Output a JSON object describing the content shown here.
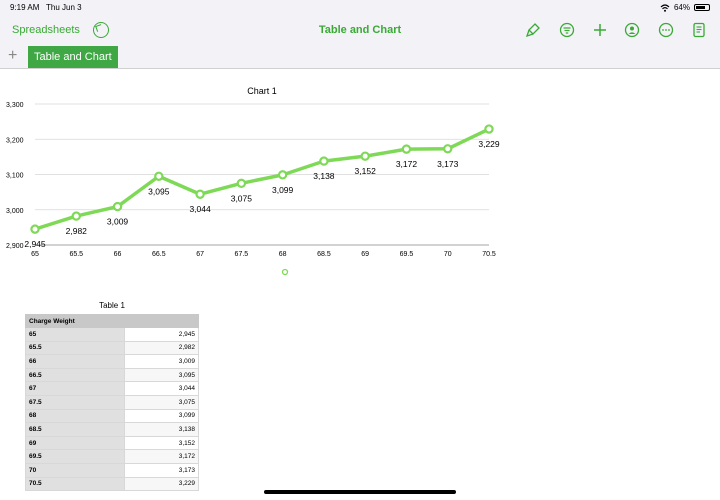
{
  "status_bar": {
    "time": "9:19 AM",
    "date": "Thu Jun 3",
    "battery": "64%",
    "battery_level": 0.64
  },
  "toolbar": {
    "back_label": "Spreadsheets",
    "title": "Table and Chart",
    "icons": [
      "undo-icon",
      "format-brush-icon",
      "filter-icon",
      "add-icon",
      "collaborate-icon",
      "more-icon",
      "document-icon"
    ]
  },
  "sheet_tab": "Table and Chart",
  "chart_data": {
    "type": "line",
    "title": "Chart 1",
    "x": [
      65,
      65.5,
      66,
      66.5,
      67,
      67.5,
      68,
      68.5,
      69,
      69.5,
      70,
      70.5
    ],
    "series": [
      {
        "values": [
          2945,
          2982,
          3009,
          3095,
          3044,
          3075,
          3099,
          3138,
          3152,
          3172,
          3173,
          3229
        ]
      }
    ],
    "data_labels": [
      "2,945",
      "2,982",
      "3,009",
      "3,095",
      "3,044",
      "3,075",
      "3,099",
      "3,138",
      "3,152",
      "3,172",
      "3,173",
      "3,229"
    ],
    "y_ticks": [
      "2,900",
      "3,000",
      "3,100",
      "3,200",
      "3,300"
    ],
    "x_ticks": [
      "65",
      "65.5",
      "66",
      "66.5",
      "67",
      "67.5",
      "68",
      "68.5",
      "69",
      "69.5",
      "70",
      "70.5"
    ],
    "xlim": [
      65,
      70.5
    ],
    "ylim": [
      2900,
      3300
    ],
    "grid": true,
    "color": "#7ed957"
  },
  "table": {
    "title": "Table 1",
    "header": "Charge Weight",
    "rows": [
      [
        "65",
        "2,945"
      ],
      [
        "65.5",
        "2,982"
      ],
      [
        "66",
        "3,009"
      ],
      [
        "66.5",
        "3,095"
      ],
      [
        "67",
        "3,044"
      ],
      [
        "67.5",
        "3,075"
      ],
      [
        "68",
        "3,099"
      ],
      [
        "68.5",
        "3,138"
      ],
      [
        "69",
        "3,152"
      ],
      [
        "69.5",
        "3,172"
      ],
      [
        "70",
        "3,173"
      ],
      [
        "70.5",
        "3,229"
      ]
    ]
  }
}
